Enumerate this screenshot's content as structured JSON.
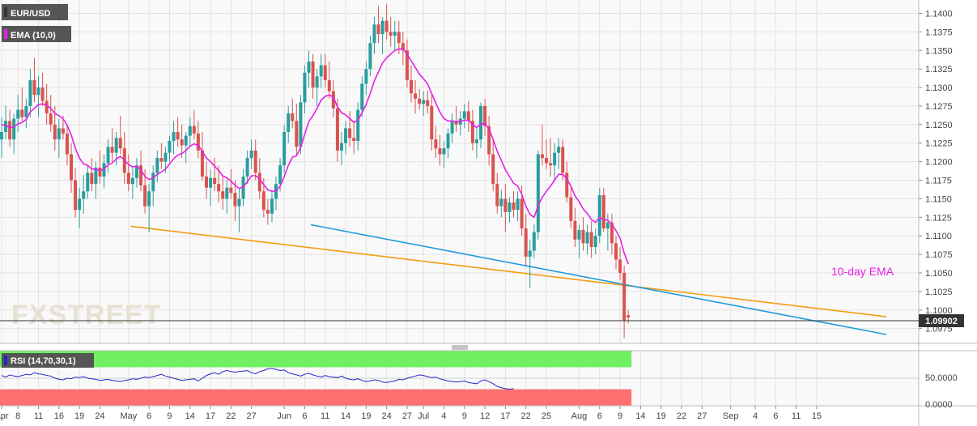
{
  "instrument": {
    "symbol": "EUR/USD",
    "indicator_label": "EMA (10,0)",
    "last_price": "1.09902"
  },
  "annotations": {
    "ema_text": "10-day EMA"
  },
  "watermark": "FXSTREET",
  "rsi_panel": {
    "label": "RSI (14,70,30,1)",
    "ticks": [
      "50.0000",
      "0.0000"
    ],
    "levels": {
      "overbought": 70,
      "oversold": 30
    },
    "rsi_values": [
      55,
      52,
      56,
      54,
      53,
      55,
      57,
      56,
      60,
      58,
      57,
      55,
      54,
      50,
      48,
      47,
      50,
      49,
      52,
      51,
      53,
      50,
      49,
      48,
      46,
      47,
      48,
      46,
      45,
      44,
      46,
      47,
      49,
      48,
      50,
      52,
      51,
      53,
      55,
      57,
      54,
      52,
      50,
      48,
      46,
      47,
      48,
      49,
      45,
      50,
      55,
      58,
      60,
      57,
      62,
      64,
      62,
      61,
      62,
      63,
      64,
      60,
      58,
      62,
      64,
      67,
      68,
      66,
      64,
      65,
      60,
      58,
      56,
      54,
      57,
      59,
      56,
      54,
      52,
      55,
      53,
      52,
      51,
      54,
      50,
      48,
      47,
      49,
      46,
      44,
      45,
      47,
      46,
      43,
      42,
      44,
      45,
      48,
      47,
      50,
      52,
      54,
      56,
      55,
      53,
      51,
      52,
      49,
      47,
      45,
      44,
      43,
      44,
      45,
      42,
      41,
      40,
      45,
      47,
      44,
      40,
      35,
      33,
      31,
      30,
      31
    ]
  },
  "colors": {
    "bull": "#2a9d9d",
    "bear": "#d9534f",
    "ema": "#e61fe6",
    "support_orange": "#f39c12",
    "support_blue": "#1e9be0",
    "rsi_line": "#2626c9",
    "overbought_fill": "#6ef060",
    "oversold_fill": "#ff7070",
    "label_bg": "#555555"
  },
  "chart_data": {
    "type": "candlestick",
    "title": "EUR/USD",
    "ylim": [
      1.0955,
      1.1418
    ],
    "y_ticks": [
      "1.1400",
      "1.1375",
      "1.1350",
      "1.1325",
      "1.1300",
      "1.1275",
      "1.1250",
      "1.1225",
      "1.1200",
      "1.1175",
      "1.1150",
      "1.1125",
      "1.1100",
      "1.1075",
      "1.1050",
      "1.1025",
      "1.1000",
      "1.0975"
    ],
    "x_ticks": [
      {
        "label": "Apr",
        "i": 0
      },
      {
        "label": "8",
        "i": 4
      },
      {
        "label": "11",
        "i": 9
      },
      {
        "label": "16",
        "i": 14
      },
      {
        "label": "19",
        "i": 19
      },
      {
        "label": "24",
        "i": 24
      },
      {
        "label": "May",
        "i": 31
      },
      {
        "label": "6",
        "i": 36
      },
      {
        "label": "9",
        "i": 41
      },
      {
        "label": "14",
        "i": 46
      },
      {
        "label": "17",
        "i": 51
      },
      {
        "label": "22",
        "i": 56
      },
      {
        "label": "27",
        "i": 61
      },
      {
        "label": "Jun",
        "i": 69
      },
      {
        "label": "6",
        "i": 74
      },
      {
        "label": "11",
        "i": 79
      },
      {
        "label": "14",
        "i": 84
      },
      {
        "label": "19",
        "i": 89
      },
      {
        "label": "24",
        "i": 94
      },
      {
        "label": "27",
        "i": 99
      },
      {
        "label": "Jul",
        "i": 103
      },
      {
        "label": "4",
        "i": 108
      },
      {
        "label": "9",
        "i": 113
      },
      {
        "label": "12",
        "i": 118
      },
      {
        "label": "17",
        "i": 123
      },
      {
        "label": "22",
        "i": 128
      },
      {
        "label": "25",
        "i": 133
      },
      {
        "label": "Aug",
        "i": 141
      },
      {
        "label": "6",
        "i": 146
      },
      {
        "label": "9",
        "i": 151
      },
      {
        "label": "14",
        "i": 156
      },
      {
        "label": "19",
        "i": 161
      },
      {
        "label": "22",
        "i": 166
      },
      {
        "label": "27",
        "i": 171
      },
      {
        "label": "Sep",
        "i": 178
      },
      {
        "label": "4",
        "i": 184
      },
      {
        "label": "6",
        "i": 189
      },
      {
        "label": "11",
        "i": 194
      },
      {
        "label": "15",
        "i": 199
      }
    ],
    "candles": [
      [
        1.123,
        1.126,
        1.1205,
        1.124
      ],
      [
        1.124,
        1.1275,
        1.123,
        1.1255
      ],
      [
        1.1255,
        1.127,
        1.122,
        1.123
      ],
      [
        1.123,
        1.1265,
        1.121,
        1.1258
      ],
      [
        1.1258,
        1.129,
        1.124,
        1.127
      ],
      [
        1.127,
        1.13,
        1.1255,
        1.126
      ],
      [
        1.126,
        1.1285,
        1.1245,
        1.1275
      ],
      [
        1.1275,
        1.1325,
        1.126,
        1.131
      ],
      [
        1.131,
        1.134,
        1.128,
        1.129
      ],
      [
        1.129,
        1.1315,
        1.126,
        1.13
      ],
      [
        1.13,
        1.132,
        1.1275,
        1.1282
      ],
      [
        1.1282,
        1.1305,
        1.125,
        1.1265
      ],
      [
        1.1265,
        1.129,
        1.124,
        1.125
      ],
      [
        1.125,
        1.1275,
        1.1215,
        1.123
      ],
      [
        1.123,
        1.1258,
        1.1205,
        1.1245
      ],
      [
        1.1245,
        1.1262,
        1.123,
        1.1238
      ],
      [
        1.1238,
        1.125,
        1.1195,
        1.121
      ],
      [
        1.121,
        1.1225,
        1.1158,
        1.1175
      ],
      [
        1.1175,
        1.1192,
        1.1125,
        1.1135
      ],
      [
        1.1135,
        1.1165,
        1.111,
        1.115
      ],
      [
        1.115,
        1.1182,
        1.113,
        1.116
      ],
      [
        1.116,
        1.1195,
        1.115,
        1.1185
      ],
      [
        1.1185,
        1.1205,
        1.116,
        1.117
      ],
      [
        1.117,
        1.12,
        1.115,
        1.1192
      ],
      [
        1.1192,
        1.1215,
        1.117,
        1.118
      ],
      [
        1.118,
        1.121,
        1.1165,
        1.1198
      ],
      [
        1.1198,
        1.123,
        1.1185,
        1.122
      ],
      [
        1.122,
        1.1245,
        1.12,
        1.1212
      ],
      [
        1.1212,
        1.124,
        1.1195,
        1.1232
      ],
      [
        1.1232,
        1.1262,
        1.121,
        1.1218
      ],
      [
        1.1218,
        1.124,
        1.117,
        1.1185
      ],
      [
        1.1185,
        1.121,
        1.116,
        1.117
      ],
      [
        1.117,
        1.1192,
        1.115,
        1.1178
      ],
      [
        1.1178,
        1.1205,
        1.1165,
        1.1195
      ],
      [
        1.1195,
        1.1215,
        1.116,
        1.1168
      ],
      [
        1.1168,
        1.119,
        1.113,
        1.114
      ],
      [
        1.114,
        1.117,
        1.1105,
        1.116
      ],
      [
        1.116,
        1.1195,
        1.114,
        1.1185
      ],
      [
        1.1185,
        1.1215,
        1.1172,
        1.1205
      ],
      [
        1.1205,
        1.1225,
        1.119,
        1.12
      ],
      [
        1.12,
        1.122,
        1.1185,
        1.1212
      ],
      [
        1.1212,
        1.1235,
        1.12,
        1.1228
      ],
      [
        1.1228,
        1.1255,
        1.121,
        1.124
      ],
      [
        1.124,
        1.126,
        1.122,
        1.123
      ],
      [
        1.123,
        1.125,
        1.1205,
        1.1222
      ],
      [
        1.1222,
        1.124,
        1.1198,
        1.1235
      ],
      [
        1.1235,
        1.126,
        1.122,
        1.1248
      ],
      [
        1.1248,
        1.127,
        1.123,
        1.1238
      ],
      [
        1.1238,
        1.1255,
        1.1205,
        1.1215
      ],
      [
        1.1215,
        1.124,
        1.1175,
        1.118
      ],
      [
        1.118,
        1.12,
        1.115,
        1.1165
      ],
      [
        1.1165,
        1.119,
        1.114,
        1.1178
      ],
      [
        1.1178,
        1.1205,
        1.116,
        1.117
      ],
      [
        1.117,
        1.1195,
        1.1145,
        1.116
      ],
      [
        1.116,
        1.118,
        1.1135,
        1.115
      ],
      [
        1.115,
        1.1175,
        1.113,
        1.1165
      ],
      [
        1.1165,
        1.119,
        1.115,
        1.1158
      ],
      [
        1.1158,
        1.1175,
        1.112,
        1.114
      ],
      [
        1.114,
        1.1165,
        1.1105,
        1.115
      ],
      [
        1.115,
        1.119,
        1.114,
        1.118
      ],
      [
        1.118,
        1.1215,
        1.117,
        1.1205
      ],
      [
        1.1205,
        1.123,
        1.119,
        1.1215
      ],
      [
        1.1215,
        1.123,
        1.1175,
        1.1185
      ],
      [
        1.1185,
        1.1205,
        1.115,
        1.116
      ],
      [
        1.116,
        1.1178,
        1.1125,
        1.1135
      ],
      [
        1.1135,
        1.115,
        1.1115,
        1.113
      ],
      [
        1.113,
        1.116,
        1.1118,
        1.115
      ],
      [
        1.115,
        1.118,
        1.1135,
        1.117
      ],
      [
        1.117,
        1.1205,
        1.116,
        1.1195
      ],
      [
        1.1195,
        1.125,
        1.1185,
        1.124
      ],
      [
        1.124,
        1.1275,
        1.1225,
        1.1265
      ],
      [
        1.1265,
        1.1285,
        1.1245,
        1.1255
      ],
      [
        1.1255,
        1.1278,
        1.121,
        1.122
      ],
      [
        1.122,
        1.129,
        1.121,
        1.128
      ],
      [
        1.128,
        1.133,
        1.1265,
        1.132
      ],
      [
        1.132,
        1.135,
        1.13,
        1.1335
      ],
      [
        1.1335,
        1.1345,
        1.1285,
        1.13
      ],
      [
        1.13,
        1.1325,
        1.1275,
        1.1315
      ],
      [
        1.1315,
        1.1345,
        1.13,
        1.133
      ],
      [
        1.133,
        1.1345,
        1.13,
        1.131
      ],
      [
        1.131,
        1.1335,
        1.1285,
        1.1295
      ],
      [
        1.1295,
        1.131,
        1.126,
        1.1272
      ],
      [
        1.1272,
        1.1285,
        1.12,
        1.1215
      ],
      [
        1.1215,
        1.124,
        1.1195,
        1.1225
      ],
      [
        1.1225,
        1.1255,
        1.121,
        1.1245
      ],
      [
        1.1245,
        1.1268,
        1.122,
        1.1232
      ],
      [
        1.1232,
        1.1255,
        1.121,
        1.1228
      ],
      [
        1.1228,
        1.128,
        1.1215,
        1.127
      ],
      [
        1.127,
        1.1315,
        1.126,
        1.1305
      ],
      [
        1.1305,
        1.1335,
        1.129,
        1.1325
      ],
      [
        1.1325,
        1.137,
        1.1315,
        1.136
      ],
      [
        1.136,
        1.1395,
        1.1345,
        1.1385
      ],
      [
        1.1385,
        1.141,
        1.136,
        1.1372
      ],
      [
        1.1372,
        1.1395,
        1.1345,
        1.139
      ],
      [
        1.139,
        1.1412,
        1.1365,
        1.1375
      ],
      [
        1.1375,
        1.1395,
        1.1355,
        1.137
      ],
      [
        1.137,
        1.139,
        1.135,
        1.1375
      ],
      [
        1.1375,
        1.139,
        1.1345,
        1.136
      ],
      [
        1.136,
        1.1375,
        1.133,
        1.135
      ],
      [
        1.135,
        1.1365,
        1.13,
        1.131
      ],
      [
        1.131,
        1.133,
        1.128,
        1.1292
      ],
      [
        1.1292,
        1.131,
        1.1265,
        1.1285
      ],
      [
        1.1285,
        1.1298,
        1.127,
        1.1278
      ],
      [
        1.1278,
        1.1295,
        1.1262,
        1.1283
      ],
      [
        1.1283,
        1.1296,
        1.1265,
        1.1275
      ],
      [
        1.1275,
        1.129,
        1.1215,
        1.123
      ],
      [
        1.123,
        1.1248,
        1.1205,
        1.1218
      ],
      [
        1.1218,
        1.1236,
        1.1195,
        1.121
      ],
      [
        1.121,
        1.1228,
        1.1192,
        1.1218
      ],
      [
        1.1218,
        1.1245,
        1.1205,
        1.1238
      ],
      [
        1.1238,
        1.1265,
        1.1225,
        1.1255
      ],
      [
        1.1255,
        1.1275,
        1.124,
        1.125
      ],
      [
        1.125,
        1.1268,
        1.1235,
        1.1258
      ],
      [
        1.1258,
        1.1278,
        1.1245,
        1.1268
      ],
      [
        1.1268,
        1.1282,
        1.124,
        1.1255
      ],
      [
        1.1255,
        1.127,
        1.1215,
        1.1225
      ],
      [
        1.1225,
        1.1245,
        1.1205,
        1.123
      ],
      [
        1.123,
        1.128,
        1.1218,
        1.1275
      ],
      [
        1.1275,
        1.1285,
        1.1235,
        1.1248
      ],
      [
        1.1248,
        1.1262,
        1.1195,
        1.121
      ],
      [
        1.121,
        1.1228,
        1.116,
        1.117
      ],
      [
        1.117,
        1.1185,
        1.113,
        1.114
      ],
      [
        1.114,
        1.1162,
        1.1125,
        1.115
      ],
      [
        1.115,
        1.117,
        1.1105,
        1.1132
      ],
      [
        1.1132,
        1.1152,
        1.1118,
        1.1145
      ],
      [
        1.1145,
        1.116,
        1.1125,
        1.1135
      ],
      [
        1.1135,
        1.116,
        1.112,
        1.115
      ],
      [
        1.115,
        1.1168,
        1.11,
        1.111
      ],
      [
        1.111,
        1.113,
        1.106,
        1.1072
      ],
      [
        1.1072,
        1.1095,
        1.103,
        1.108
      ],
      [
        1.108,
        1.1115,
        1.107,
        1.1105
      ],
      [
        1.1105,
        1.1215,
        1.1095,
        1.121
      ],
      [
        1.121,
        1.125,
        1.1195,
        1.1205
      ],
      [
        1.1205,
        1.123,
        1.119,
        1.1198
      ],
      [
        1.1198,
        1.1232,
        1.118,
        1.1195
      ],
      [
        1.1195,
        1.1225,
        1.1175,
        1.1212
      ],
      [
        1.1212,
        1.1232,
        1.119,
        1.122
      ],
      [
        1.122,
        1.123,
        1.1175,
        1.1185
      ],
      [
        1.1185,
        1.12,
        1.1145,
        1.1152
      ],
      [
        1.1152,
        1.1165,
        1.111,
        1.112
      ],
      [
        1.112,
        1.1138,
        1.1085,
        1.1095
      ],
      [
        1.1095,
        1.1115,
        1.107,
        1.1108
      ],
      [
        1.1108,
        1.1125,
        1.108,
        1.109
      ],
      [
        1.109,
        1.1115,
        1.1075,
        1.1105
      ],
      [
        1.1105,
        1.112,
        1.107,
        1.1085
      ],
      [
        1.1085,
        1.111,
        1.1075,
        1.11
      ],
      [
        1.11,
        1.1165,
        1.109,
        1.1155
      ],
      [
        1.1155,
        1.1165,
        1.1105,
        1.111
      ],
      [
        1.111,
        1.113,
        1.108,
        1.1118
      ],
      [
        1.1118,
        1.113,
        1.1075,
        1.109
      ],
      [
        1.109,
        1.11,
        1.1055,
        1.1068
      ],
      [
        1.1068,
        1.1085,
        1.104,
        1.105
      ],
      [
        1.105,
        1.106,
        1.0962,
        1.0985
      ],
      [
        1.0993,
        1.1,
        1.0982,
        1.099
      ]
    ],
    "ema": [
      1.125,
      1.1249,
      1.1246,
      1.1247,
      1.1251,
      1.1253,
      1.1257,
      1.1267,
      1.1272,
      1.1277,
      1.1278,
      1.1276,
      1.1272,
      1.1265,
      1.1262,
      1.1258,
      1.1249,
      1.1236,
      1.1218,
      1.1205,
      1.1197,
      1.1195,
      1.119,
      1.119,
      1.1188,
      1.119,
      1.1196,
      1.1198,
      1.1204,
      1.1207,
      1.1202,
      1.1196,
      1.1193,
      1.1194,
      1.1189,
      1.118,
      1.1176,
      1.1178,
      1.1183,
      1.1186,
      1.119,
      1.1197,
      1.1204,
      1.1209,
      1.1211,
      1.1215,
      1.1221,
      1.1224,
      1.1222,
      1.1214,
      1.1205,
      1.12,
      1.1194,
      1.1188,
      1.1181,
      1.1178,
      1.1174,
      1.1168,
      1.1164,
      1.1166,
      1.1173,
      1.1181,
      1.1181,
      1.1177,
      1.1169,
      1.1162,
      1.116,
      1.1161,
      1.1167,
      1.118,
      1.1195,
      1.1206,
      1.1208,
      1.1219,
      1.1237,
      1.1254,
      1.1262,
      1.1272,
      1.1283,
      1.1288,
      1.129,
      1.1287,
      1.1274,
      1.1266,
      1.1263,
      1.1258,
      1.1253,
      1.1256,
      1.1266,
      1.1277,
      1.1292,
      1.1309,
      1.1321,
      1.1333,
      1.134,
      1.1345,
      1.135,
      1.1352,
      1.1352,
      1.1345,
      1.1336,
      1.1327,
      1.1318,
      1.1312,
      1.1305,
      1.1292,
      1.1279,
      1.1267,
      1.1258,
      1.1255,
      1.1255,
      1.1254,
      1.1254,
      1.1256,
      1.1256,
      1.125,
      1.1246,
      1.1251,
      1.1251,
      1.1244,
      1.123,
      1.1214,
      1.1202,
      1.1189,
      1.118,
      1.1171,
      1.1167,
      1.1156,
      1.114,
      1.1129,
      1.1125,
      1.1141,
      1.1152,
      1.116,
      1.1167,
      1.1175,
      1.1183,
      1.1183,
      1.1177,
      1.1167,
      1.1154,
      1.1146,
      1.1136,
      1.113,
      1.1122,
      1.1118,
      1.1125,
      1.1122,
      1.1121,
      1.1116,
      1.1107,
      1.1097,
      1.1077,
      1.1062
    ]
  }
}
